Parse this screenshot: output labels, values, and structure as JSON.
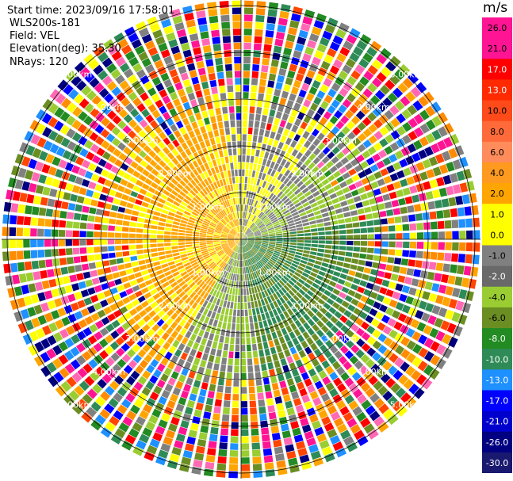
{
  "header": {
    "start_time": "Start time: 2023/09/16 17:58:01",
    "device": "WLS200s-181",
    "field": "Field: VEL",
    "elevation": "Elevation(deg): 35.30",
    "nrays": "NRays: 120"
  },
  "chart_data": {
    "type": "heatmap",
    "projection": "polar-ppi",
    "unit": "m/s",
    "nrays": 120,
    "range_ring_labels": [
      "1.00km",
      "2.00km",
      "3.00km",
      "4.00km",
      "5.00km"
    ],
    "colorbar": {
      "tick_labels": [
        "26.0",
        "21.0",
        "17.0",
        "13.0",
        "10.0",
        "8.0",
        "6.0",
        "4.0",
        "2.0",
        "1.0",
        "0.0",
        "-1.0",
        "-2.0",
        "-4.0",
        "-6.0",
        "-8.0",
        "-10.0",
        "-13.0",
        "-17.0",
        "-21.0",
        "-26.0",
        "-30.0"
      ],
      "bins": [
        {
          "color": "#ff1493"
        },
        {
          "color": "#ff1493"
        },
        {
          "color": "#ff0000"
        },
        {
          "color": "#ff2a00"
        },
        {
          "color": "#ff4a1a"
        },
        {
          "color": "#ff6a3a"
        },
        {
          "color": "#ff8c5a"
        },
        {
          "color": "#ff9a20"
        },
        {
          "color": "#ffa500"
        },
        {
          "color": "#ffff00"
        },
        {
          "color": "#ffff00"
        },
        {
          "color": "#808080"
        },
        {
          "color": "#696969"
        },
        {
          "color": "#9acd32"
        },
        {
          "color": "#6b8e23"
        },
        {
          "color": "#228b22"
        },
        {
          "color": "#2e8b57"
        },
        {
          "color": "#1e90ff"
        },
        {
          "color": "#0000ff"
        },
        {
          "color": "#0000cd"
        },
        {
          "color": "#000080"
        },
        {
          "color": "#191970"
        }
      ]
    },
    "sectors": {
      "near_positive": "#ffa500",
      "near_positive_inner": "#ffff00",
      "near_zero": "#808080",
      "near_negative": "#9acd32",
      "mid_negative": "#6b8e23",
      "far_negative": "#2e8b57"
    },
    "noise_palette": [
      "#ff1493",
      "#ff0000",
      "#ff8c00",
      "#ffff00",
      "#808080",
      "#9acd32",
      "#228b22",
      "#2e8b57",
      "#1e90ff",
      "#0000ff",
      "#000080",
      "#ff69b4",
      "#ffa500",
      "#ff4500",
      "#6b8e23"
    ]
  }
}
